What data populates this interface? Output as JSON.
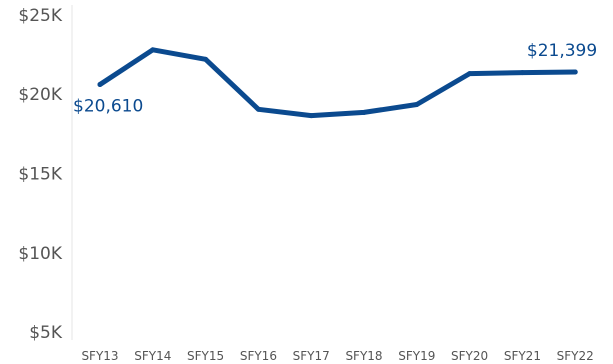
{
  "colors": {
    "line": "#0b4a8f",
    "label": "#0b4a8f",
    "axis": "#e6e6e6",
    "tick_text": "#555555"
  },
  "chart_data": {
    "type": "line",
    "categories": [
      "SFY13",
      "SFY14",
      "SFY15",
      "SFY16",
      "SFY17",
      "SFY18",
      "SFY19",
      "SFY20",
      "SFY21",
      "SFY22"
    ],
    "series": [
      {
        "values": [
          20610,
          22800,
          22200,
          19050,
          18650,
          18850,
          19350,
          21300,
          21360,
          21399
        ]
      }
    ],
    "y_ticks": [
      5000,
      10000,
      15000,
      20000,
      25000
    ],
    "y_tick_labels": [
      "$5K",
      "$10K",
      "$15K",
      "$20K",
      "$25K"
    ],
    "ylim": [
      4500,
      25500
    ],
    "grid": false,
    "annotations": [
      {
        "index": 0,
        "text": "$20,610"
      },
      {
        "index": 9,
        "text": "$21,399"
      }
    ],
    "title": "",
    "xlabel": "",
    "ylabel": ""
  }
}
